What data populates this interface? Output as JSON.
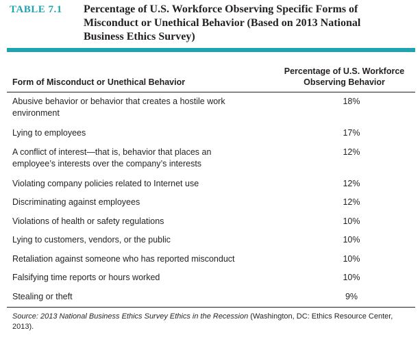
{
  "header": {
    "label": "TABLE 7.1",
    "title": "Percentage of U.S. Workforce Observing Specific Forms of Misconduct or Unethical Behavior (Based on 2013 National Business Ethics Survey)"
  },
  "table": {
    "columns": [
      "Form of Misconduct or Unethical Behavior",
      "Percentage of U.S. Workforce Observing Behavior"
    ],
    "rows": [
      [
        "Abusive behavior or behavior that creates a hostile work environment",
        "18%"
      ],
      [
        "Lying to employees",
        "17%"
      ],
      [
        "A conflict of interest—that is, behavior that places an employee’s interests over the company’s interests",
        "12%"
      ],
      [
        "Violating company policies related to Internet use",
        "12%"
      ],
      [
        "Discriminating against employees",
        "12%"
      ],
      [
        "Violations of health or safety regulations",
        "10%"
      ],
      [
        "Lying to customers, vendors, or the public",
        "10%"
      ],
      [
        "Retaliation against someone who has reported misconduct",
        "10%"
      ],
      [
        "Falsifying time reports or hours worked",
        "10%"
      ],
      [
        "Stealing or theft",
        "9%"
      ]
    ]
  },
  "source": {
    "citation": "Source: 2013 National Business Ethics Survey Ethics in the Recession",
    "details": " (Washington, DC: Ethics Resource Center, 2013)."
  }
}
